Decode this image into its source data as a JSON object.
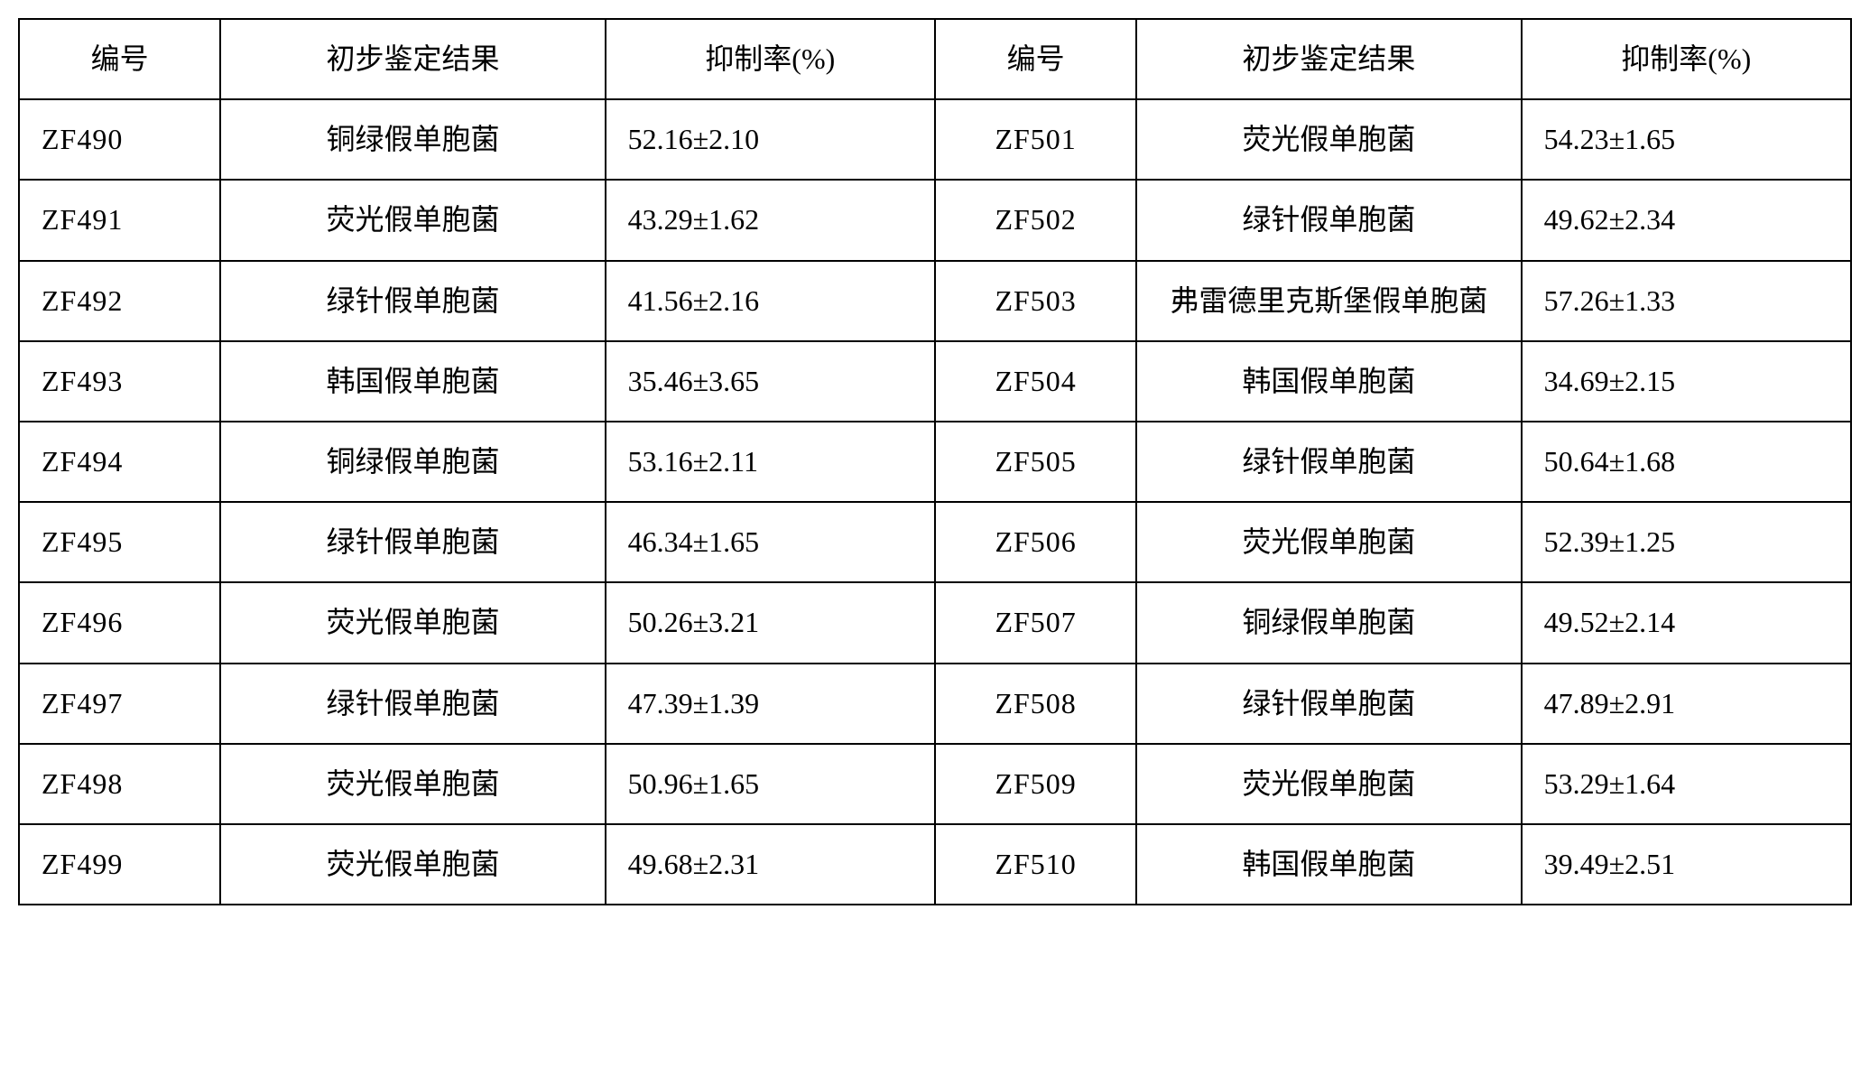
{
  "table": {
    "headers": {
      "id": "编号",
      "result": "初步鉴定结果",
      "rate": "抑制率(%)"
    },
    "rows": [
      {
        "id1": "ZF490",
        "result1": "铜绿假单胞菌",
        "rate1": "52.16±2.10",
        "id2": "ZF501",
        "result2": "荧光假单胞菌",
        "rate2": "54.23±1.65"
      },
      {
        "id1": "ZF491",
        "result1": "荧光假单胞菌",
        "rate1": "43.29±1.62",
        "id2": "ZF502",
        "result2": "绿针假单胞菌",
        "rate2": "49.62±2.34"
      },
      {
        "id1": "ZF492",
        "result1": "绿针假单胞菌",
        "rate1": "41.56±2.16",
        "id2": "ZF503",
        "result2": "弗雷德里克斯堡假单胞菌",
        "rate2": "57.26±1.33"
      },
      {
        "id1": "ZF493",
        "result1": "韩国假单胞菌",
        "rate1": "35.46±3.65",
        "id2": "ZF504",
        "result2": "韩国假单胞菌",
        "rate2": "34.69±2.15"
      },
      {
        "id1": "ZF494",
        "result1": "铜绿假单胞菌",
        "rate1": "53.16±2.11",
        "id2": "ZF505",
        "result2": "绿针假单胞菌",
        "rate2": "50.64±1.68"
      },
      {
        "id1": "ZF495",
        "result1": "绿针假单胞菌",
        "rate1": "46.34±1.65",
        "id2": "ZF506",
        "result2": "荧光假单胞菌",
        "rate2": "52.39±1.25"
      },
      {
        "id1": "ZF496",
        "result1": "荧光假单胞菌",
        "rate1": "50.26±3.21",
        "id2": "ZF507",
        "result2": "铜绿假单胞菌",
        "rate2": "49.52±2.14"
      },
      {
        "id1": "ZF497",
        "result1": "绿针假单胞菌",
        "rate1": "47.39±1.39",
        "id2": "ZF508",
        "result2": "绿针假单胞菌",
        "rate2": "47.89±2.91"
      },
      {
        "id1": "ZF498",
        "result1": "荧光假单胞菌",
        "rate1": "50.96±1.65",
        "id2": "ZF509",
        "result2": "荧光假单胞菌",
        "rate2": "53.29±1.64"
      },
      {
        "id1": "ZF499",
        "result1": "荧光假单胞菌",
        "rate1": "49.68±2.31",
        "id2": "ZF510",
        "result2": "韩国假单胞菌",
        "rate2": "39.49±2.51"
      }
    ],
    "styling": {
      "border_color": "#000000",
      "border_width": 2,
      "background_color": "#ffffff",
      "font_family_cjk": "SimSun",
      "font_family_latin": "Times New Roman",
      "font_size": 32,
      "cell_padding_vertical": 18,
      "cell_padding_horizontal": 12,
      "line_height": 1.6
    }
  }
}
